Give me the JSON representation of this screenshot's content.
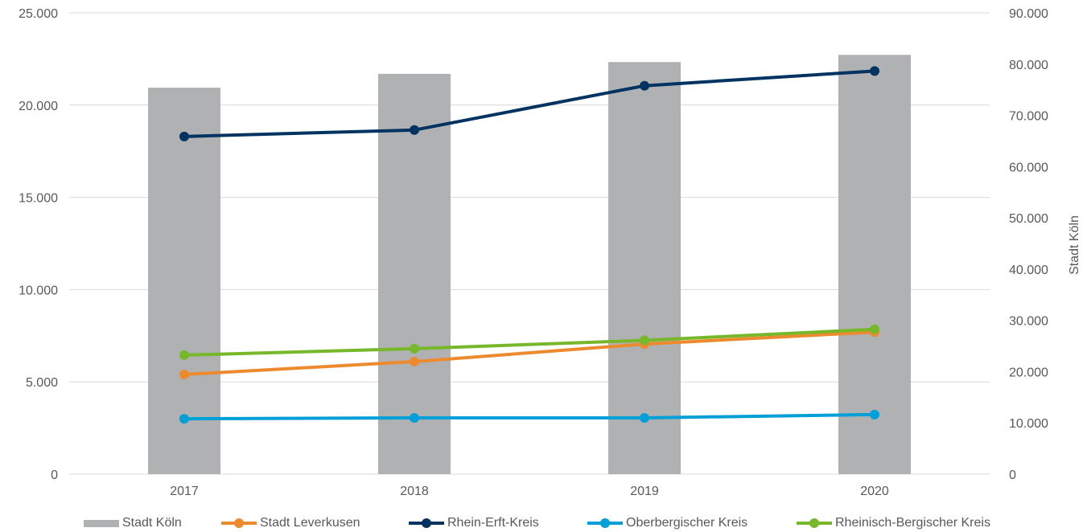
{
  "chart_data": {
    "type": "bar+line",
    "categories": [
      "2017",
      "2018",
      "2019",
      "2020"
    ],
    "left_axis": {
      "ylim": [
        0,
        25000
      ],
      "ticks": [
        "0",
        "5.000",
        "10.000",
        "15.000",
        "20.000",
        "25.000"
      ]
    },
    "right_axis": {
      "ylabel": "Stadt Köln",
      "ylim": [
        0,
        90000
      ],
      "ticks": [
        "0",
        "10.000",
        "20.000",
        "30.000",
        "40.000",
        "50.000",
        "60.000",
        "70.000",
        "80.000",
        "90.000"
      ]
    },
    "grid": "horizontal",
    "legend_position": "bottom",
    "series": [
      {
        "name": "Stadt Köln",
        "type": "bar",
        "axis": "right",
        "color": "#b0b1b3",
        "values": [
          75400,
          78100,
          80400,
          81800
        ]
      },
      {
        "name": "Stadt Leverkusen",
        "type": "line",
        "axis": "left",
        "color": "#ee8a2e",
        "values": [
          5400,
          6100,
          7050,
          7700
        ]
      },
      {
        "name": "Rhein-Erft-Kreis",
        "type": "line",
        "axis": "left",
        "color": "#003361",
        "values": [
          18300,
          18650,
          21050,
          21850
        ]
      },
      {
        "name": "Oberbergischer Kreis",
        "type": "line",
        "axis": "left",
        "color": "#009fd8",
        "values": [
          3000,
          3050,
          3050,
          3230
        ]
      },
      {
        "name": "Rheinisch-Bergischer Kreis",
        "type": "line",
        "axis": "left",
        "color": "#76b82a",
        "values": [
          6450,
          6800,
          7250,
          7850
        ]
      }
    ]
  }
}
